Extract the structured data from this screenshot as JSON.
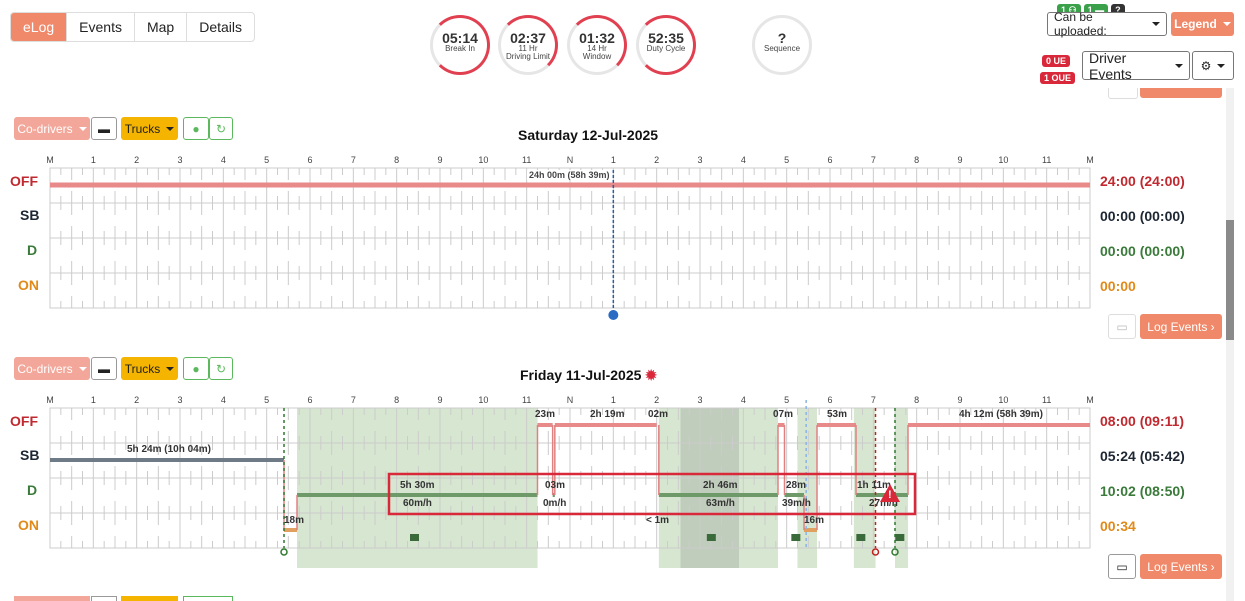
{
  "nav": {
    "tabs": [
      "eLog",
      "Events",
      "Map",
      "Details"
    ]
  },
  "gauges": [
    {
      "value": "05:14",
      "label1": "Break In",
      "label2": ""
    },
    {
      "value": "02:37",
      "label1": "11 Hr",
      "label2": "Driving Limit"
    },
    {
      "value": "01:32",
      "label1": "14 Hr",
      "label2": "Window"
    },
    {
      "value": "52:35",
      "label1": "Duty Cycle",
      "label2": ""
    },
    {
      "value": "?",
      "label1": "Sequence",
      "label2": ""
    }
  ],
  "top_right": {
    "mini_badge_1": "1",
    "mini_badge_2": "1",
    "mini_badge_q": "?",
    "upload_select": "Can be uploaded:",
    "legend": "Legend",
    "ue": "0 UE",
    "oue": "1 OUE",
    "driver_events": "Driver Events"
  },
  "toolbar": {
    "codrivers": "Co-drivers",
    "trucks": "Trucks",
    "log_events": "Log Events"
  },
  "hour_labels": [
    "M",
    "1",
    "2",
    "3",
    "4",
    "5",
    "6",
    "7",
    "8",
    "9",
    "10",
    "11",
    "N",
    "1",
    "2",
    "3",
    "4",
    "5",
    "6",
    "7",
    "8",
    "9",
    "10",
    "11",
    "M"
  ],
  "status_labels": [
    "OFF",
    "SB",
    "D",
    "ON"
  ],
  "colors": {
    "off": "#c0292f",
    "sb": "#1d2733",
    "d": "#3a7a3a",
    "on": "#e08a1a",
    "accent": "#f0896a"
  },
  "day1": {
    "title": "Saturday 12-Jul-2025",
    "totals": [
      "24:00 (24:00)",
      "00:00 (00:00)",
      "00:00 (00:00)",
      "00:00"
    ],
    "off_label": "24h 00m (58h 39m)"
  },
  "day2": {
    "title": "Friday 11-Jul-2025",
    "totals": [
      "08:00 (09:11)",
      "05:24 (05:42)",
      "10:02 (08:50)",
      "00:34"
    ],
    "labels": {
      "sb1": "5h 24m (10h 04m)",
      "off1": "23m",
      "off2": "2h 19m",
      "off3": "02m",
      "off4": "07m",
      "off5": "53m",
      "off6": "4h 12m (58h 39m)",
      "d1": "5h 30m",
      "d1s": "60m/h",
      "d2": "03m",
      "d2s": "0m/h",
      "d3": "2h 46m",
      "d3s": "63m/h",
      "d4": "28m",
      "d4s": "39m/h",
      "d5": "1h 11m",
      "d5s": "27m/h",
      "on1": "18m",
      "on2": "< 1m",
      "on3": "16m"
    }
  }
}
